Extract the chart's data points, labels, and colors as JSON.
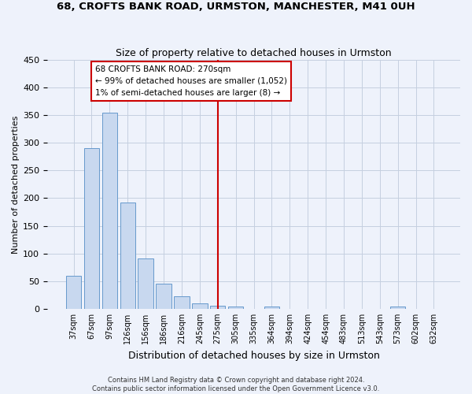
{
  "title": "68, CROFTS BANK ROAD, URMSTON, MANCHESTER, M41 0UH",
  "subtitle": "Size of property relative to detached houses in Urmston",
  "xlabel": "Distribution of detached houses by size in Urmston",
  "ylabel": "Number of detached properties",
  "bar_labels": [
    "37sqm",
    "67sqm",
    "97sqm",
    "126sqm",
    "156sqm",
    "186sqm",
    "216sqm",
    "245sqm",
    "275sqm",
    "305sqm",
    "335sqm",
    "364sqm",
    "394sqm",
    "424sqm",
    "454sqm",
    "483sqm",
    "513sqm",
    "543sqm",
    "573sqm",
    "602sqm",
    "632sqm"
  ],
  "bar_values": [
    60,
    290,
    355,
    192,
    91,
    46,
    22,
    9,
    5,
    4,
    0,
    4,
    0,
    0,
    0,
    0,
    0,
    0,
    4,
    0,
    0
  ],
  "bar_color": "#c8d8ef",
  "bar_edge_color": "#6699cc",
  "vline_x_index": 8,
  "vline_color": "#cc0000",
  "ylim": [
    0,
    450
  ],
  "yticks": [
    0,
    50,
    100,
    150,
    200,
    250,
    300,
    350,
    400,
    450
  ],
  "annotation_title": "68 CROFTS BANK ROAD: 270sqm",
  "annotation_line1": "← 99% of detached houses are smaller (1,052)",
  "annotation_line2": "1% of semi-detached houses are larger (8) →",
  "footer_line1": "Contains HM Land Registry data © Crown copyright and database right 2024.",
  "footer_line2": "Contains public sector information licensed under the Open Government Licence v3.0.",
  "background_color": "#eef2fb",
  "grid_color": "#c5cfe0"
}
